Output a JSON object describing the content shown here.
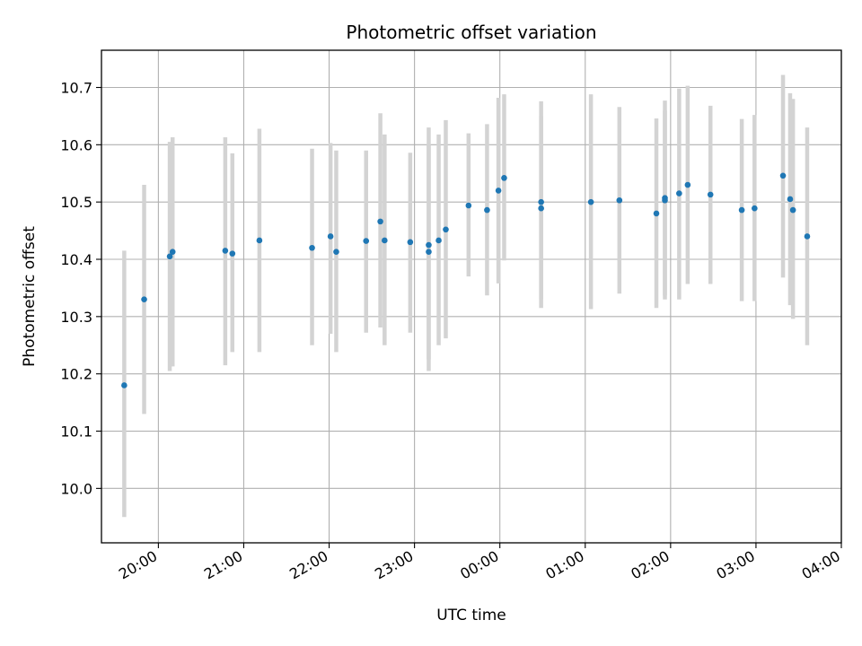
{
  "chart_data": {
    "type": "scatter",
    "title": "Photometric offset variation",
    "xlabel": "UTC time",
    "ylabel": "Photometric offset",
    "grid": true,
    "xlim": [
      "19:20",
      "04:00"
    ],
    "ylim": [
      9.905,
      10.765
    ],
    "x_ticks": [
      "20:00",
      "21:00",
      "22:00",
      "23:00",
      "00:00",
      "01:00",
      "02:00",
      "03:00",
      "04:00"
    ],
    "y_ticks": [
      "10.0",
      "10.1",
      "10.2",
      "10.3",
      "10.4",
      "10.5",
      "10.6",
      "10.7"
    ],
    "colors": {
      "points": "#1f77b4",
      "errorbars": "#d3d3d3",
      "grid": "#b0b0b0"
    },
    "points": [
      {
        "x": "19:36",
        "y": 10.18,
        "lo": 9.95,
        "hi": 10.415
      },
      {
        "x": "19:50",
        "y": 10.33,
        "lo": 10.13,
        "hi": 10.53
      },
      {
        "x": "20:08",
        "y": 10.405,
        "lo": 10.205,
        "hi": 10.605
      },
      {
        "x": "20:10",
        "y": 10.413,
        "lo": 10.213,
        "hi": 10.613
      },
      {
        "x": "20:47",
        "y": 10.415,
        "lo": 10.215,
        "hi": 10.613
      },
      {
        "x": "20:52",
        "y": 10.41,
        "lo": 10.238,
        "hi": 10.585
      },
      {
        "x": "21:11",
        "y": 10.433,
        "lo": 10.238,
        "hi": 10.628
      },
      {
        "x": "21:48",
        "y": 10.42,
        "lo": 10.25,
        "hi": 10.593
      },
      {
        "x": "22:01",
        "y": 10.44,
        "lo": 10.27,
        "hi": 10.603
      },
      {
        "x": "22:05",
        "y": 10.413,
        "lo": 10.238,
        "hi": 10.59
      },
      {
        "x": "22:26",
        "y": 10.432,
        "lo": 10.272,
        "hi": 10.59
      },
      {
        "x": "22:36",
        "y": 10.466,
        "lo": 10.281,
        "hi": 10.655
      },
      {
        "x": "22:39",
        "y": 10.433,
        "lo": 10.25,
        "hi": 10.618
      },
      {
        "x": "22:57",
        "y": 10.43,
        "lo": 10.272,
        "hi": 10.586
      },
      {
        "x": "23:10",
        "y": 10.425,
        "lo": 10.205,
        "hi": 10.63
      },
      {
        "x": "23:10",
        "y": 10.413,
        "lo": 10.225,
        "hi": 10.6
      },
      {
        "x": "23:17",
        "y": 10.433,
        "lo": 10.25,
        "hi": 10.618
      },
      {
        "x": "23:22",
        "y": 10.452,
        "lo": 10.262,
        "hi": 10.643
      },
      {
        "x": "23:38",
        "y": 10.494,
        "lo": 10.37,
        "hi": 10.62
      },
      {
        "x": "23:51",
        "y": 10.486,
        "lo": 10.337,
        "hi": 10.636
      },
      {
        "x": "23:59",
        "y": 10.52,
        "lo": 10.358,
        "hi": 10.682
      },
      {
        "x": "00:03",
        "y": 10.542,
        "lo": 10.398,
        "hi": 10.688
      },
      {
        "x": "00:29",
        "y": 10.5,
        "lo": 10.315,
        "hi": 10.676
      },
      {
        "x": "00:29",
        "y": 10.489,
        "lo": 10.33,
        "hi": 10.65
      },
      {
        "x": "01:04",
        "y": 10.5,
        "lo": 10.313,
        "hi": 10.688
      },
      {
        "x": "01:24",
        "y": 10.503,
        "lo": 10.34,
        "hi": 10.666
      },
      {
        "x": "01:50",
        "y": 10.48,
        "lo": 10.315,
        "hi": 10.646
      },
      {
        "x": "01:56",
        "y": 10.507,
        "lo": 10.337,
        "hi": 10.677
      },
      {
        "x": "01:56",
        "y": 10.503,
        "lo": 10.33,
        "hi": 10.66
      },
      {
        "x": "02:06",
        "y": 10.515,
        "lo": 10.33,
        "hi": 10.698
      },
      {
        "x": "02:12",
        "y": 10.53,
        "lo": 10.357,
        "hi": 10.703
      },
      {
        "x": "02:28",
        "y": 10.513,
        "lo": 10.357,
        "hi": 10.668
      },
      {
        "x": "02:50",
        "y": 10.486,
        "lo": 10.327,
        "hi": 10.645
      },
      {
        "x": "02:59",
        "y": 10.489,
        "lo": 10.327,
        "hi": 10.652
      },
      {
        "x": "03:19",
        "y": 10.546,
        "lo": 10.368,
        "hi": 10.722
      },
      {
        "x": "03:24",
        "y": 10.505,
        "lo": 10.32,
        "hi": 10.69
      },
      {
        "x": "03:26",
        "y": 10.486,
        "lo": 10.296,
        "hi": 10.68
      },
      {
        "x": "03:36",
        "y": 10.44,
        "lo": 10.25,
        "hi": 10.63
      }
    ]
  }
}
